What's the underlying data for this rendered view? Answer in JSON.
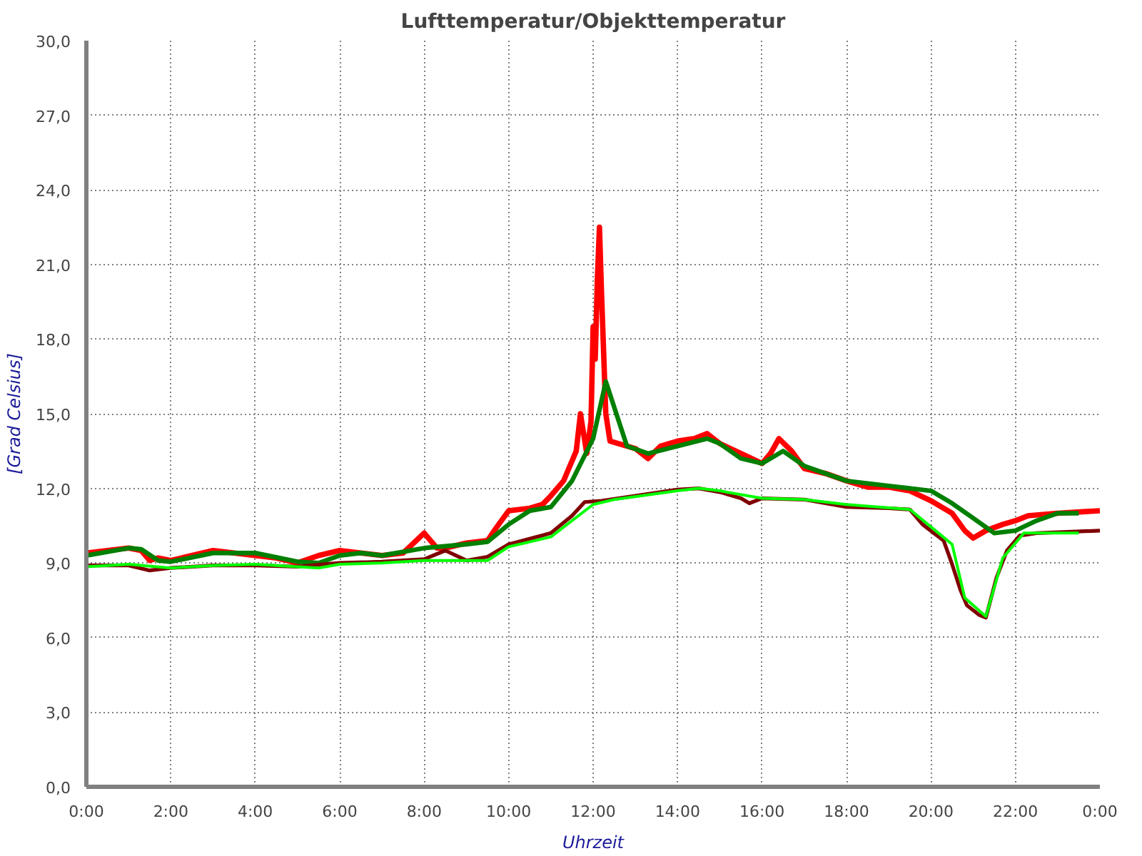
{
  "chart_data": {
    "type": "line",
    "title": "Lufttemperatur/Objekttemperatur",
    "xlabel": "Uhrzeit",
    "ylabel": "[Grad Celsius]",
    "grid": true,
    "xlim": [
      0,
      24
    ],
    "ylim": [
      0,
      30
    ],
    "xticks": [
      {
        "value": 0,
        "label": "0:00"
      },
      {
        "value": 2,
        "label": "2:00"
      },
      {
        "value": 4,
        "label": "4:00"
      },
      {
        "value": 6,
        "label": "6:00"
      },
      {
        "value": 8,
        "label": "8:00"
      },
      {
        "value": 10,
        "label": "10:00"
      },
      {
        "value": 12,
        "label": "12:00"
      },
      {
        "value": 14,
        "label": "14:00"
      },
      {
        "value": 16,
        "label": "16:00"
      },
      {
        "value": 18,
        "label": "18:00"
      },
      {
        "value": 20,
        "label": "20:00"
      },
      {
        "value": 22,
        "label": "22:00"
      },
      {
        "value": 24,
        "label": "0:00"
      }
    ],
    "yticks": [
      {
        "value": 0,
        "label": "0,0"
      },
      {
        "value": 3,
        "label": "3,0"
      },
      {
        "value": 6,
        "label": "6,0"
      },
      {
        "value": 9,
        "label": "9,0"
      },
      {
        "value": 12,
        "label": "12,0"
      },
      {
        "value": 15,
        "label": "15,0"
      },
      {
        "value": 18,
        "label": "18,0"
      },
      {
        "value": 21,
        "label": "21,0"
      },
      {
        "value": 24,
        "label": "24,0"
      },
      {
        "value": 27,
        "label": "27,0"
      },
      {
        "value": 30,
        "label": "30,0"
      }
    ],
    "series": [
      {
        "color": "#ff0000",
        "x": [
          0,
          0.5,
          1,
          1.3,
          1.5,
          1.7,
          2,
          2.5,
          3,
          3.5,
          4,
          4.5,
          5,
          5.5,
          6,
          6.5,
          7,
          7.5,
          8,
          8.3,
          8.5,
          9,
          9.5,
          9.7,
          10,
          10.5,
          10.8,
          11,
          11.3,
          11.6,
          11.7,
          11.85,
          11.95,
          12,
          12.05,
          12.1,
          12.15,
          12.2,
          12.3,
          12.4,
          12.6,
          13,
          13.3,
          13.6,
          14,
          14.4,
          14.7,
          15,
          15.5,
          16,
          16.2,
          16.4,
          16.7,
          17,
          17.5,
          18,
          18.5,
          19,
          19.5,
          20,
          20.5,
          20.8,
          21,
          21.3,
          21.7,
          22,
          22.3,
          23,
          24
        ],
        "values": [
          9.4,
          9.5,
          9.6,
          9.5,
          9.1,
          9.2,
          9.1,
          9.3,
          9.5,
          9.4,
          9.3,
          9.2,
          9.0,
          9.3,
          9.5,
          9.4,
          9.3,
          9.4,
          10.2,
          9.6,
          9.6,
          9.8,
          9.9,
          10.4,
          11.1,
          11.2,
          11.35,
          11.7,
          12.3,
          13.5,
          15.0,
          13.4,
          14.7,
          18.5,
          17.2,
          20.4,
          22.5,
          19.8,
          15.0,
          13.9,
          13.8,
          13.6,
          13.2,
          13.7,
          13.9,
          14.0,
          14.2,
          13.8,
          13.4,
          13.0,
          13.4,
          14.0,
          13.5,
          12.8,
          12.6,
          12.3,
          12.05,
          12.05,
          11.9,
          11.5,
          11.0,
          10.3,
          10.0,
          10.3,
          10.55,
          10.7,
          10.9,
          11.0,
          11.1
        ]
      },
      {
        "color": "#007f00",
        "x": [
          0,
          1,
          1.3,
          1.7,
          2,
          3,
          4,
          5,
          5.5,
          6,
          6.5,
          7,
          8,
          9,
          9.5,
          10,
          10.5,
          11,
          11.5,
          12,
          12.3,
          12.8,
          13.3,
          14,
          14.7,
          15,
          15.5,
          16,
          16.5,
          17,
          18,
          19,
          20,
          20.5,
          21,
          21.5,
          22,
          22.5,
          23,
          23.5
        ],
        "values": [
          9.3,
          9.6,
          9.55,
          9.1,
          9.05,
          9.4,
          9.4,
          9.05,
          9.0,
          9.3,
          9.4,
          9.3,
          9.6,
          9.75,
          9.85,
          10.55,
          11.1,
          11.25,
          12.3,
          14.0,
          16.3,
          13.7,
          13.4,
          13.7,
          14.0,
          13.8,
          13.2,
          13.0,
          13.5,
          12.9,
          12.3,
          12.1,
          11.9,
          11.4,
          10.8,
          10.2,
          10.3,
          10.7,
          11.0,
          11.0
        ]
      },
      {
        "color": "#800000",
        "x": [
          0,
          1,
          1.5,
          2,
          3,
          4,
          5,
          6,
          7,
          8,
          8.5,
          9,
          9.5,
          10,
          11,
          11.5,
          11.8,
          12.2,
          13,
          14,
          14.5,
          15,
          15.5,
          15.7,
          16,
          17,
          18,
          19,
          19.5,
          19.8,
          20.3,
          20.5,
          20.7,
          20.85,
          21.15,
          21.3,
          21.55,
          21.8,
          22.1,
          22.5,
          24
        ],
        "values": [
          8.9,
          8.9,
          8.7,
          8.8,
          8.9,
          8.9,
          8.85,
          9.0,
          9.05,
          9.15,
          9.5,
          9.1,
          9.25,
          9.75,
          10.2,
          10.9,
          11.45,
          11.5,
          11.7,
          11.95,
          12.0,
          11.85,
          11.6,
          11.4,
          11.6,
          11.55,
          11.25,
          11.2,
          11.15,
          10.55,
          9.9,
          8.95,
          7.9,
          7.3,
          6.9,
          6.8,
          8.4,
          9.5,
          10.1,
          10.2,
          10.3
        ]
      },
      {
        "color": "#00ff00",
        "x": [
          0,
          1,
          2,
          3,
          4,
          5,
          5.5,
          6,
          7,
          8,
          9,
          9.5,
          10,
          11,
          11.5,
          12,
          12.5,
          14,
          14.5,
          15,
          16,
          17,
          18,
          19.5,
          20,
          20.5,
          20.8,
          21.3,
          21.7,
          22.2,
          23.5
        ],
        "values": [
          8.85,
          8.95,
          8.8,
          8.9,
          8.95,
          8.85,
          8.8,
          8.95,
          9.0,
          9.1,
          9.1,
          9.1,
          9.65,
          10.05,
          10.7,
          11.35,
          11.55,
          11.9,
          12.0,
          11.9,
          11.6,
          11.55,
          11.35,
          11.15,
          10.45,
          9.75,
          7.6,
          6.85,
          9.2,
          10.2,
          10.2
        ]
      }
    ]
  }
}
